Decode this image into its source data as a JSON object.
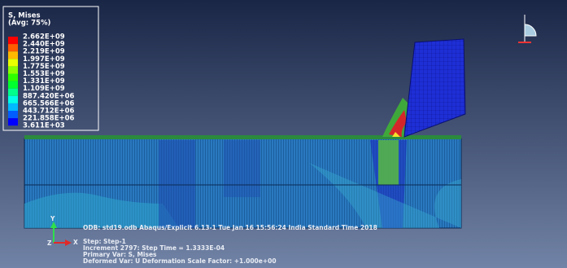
{
  "legend": {
    "title": "S, Mises",
    "subtitle": "(Avg: 75%)",
    "labels": [
      "2.662E+09",
      "2.440E+09",
      "2.219E+09",
      "1.997E+09",
      "1.775E+09",
      "1.553E+09",
      "1.331E+09",
      "1.109E+09",
      "887.420E+06",
      "665.566E+06",
      "443.712E+06",
      "221.858E+06",
      "3.611E+03"
    ],
    "colors": [
      "#ff0000",
      "#ff5d00",
      "#ffb900",
      "#e9ff00",
      "#8bff00",
      "#2eff00",
      "#00ff2e",
      "#00ff8b",
      "#00ffe8",
      "#00b9ff",
      "#005dff",
      "#0000ff"
    ]
  },
  "info": {
    "odb_line": "ODB: std19.odb    Abaqus/Explicit 6.13-1    Tue Jan 16 15:56:24 India Standard Time 2018",
    "step": "Step: Step-1",
    "increment": "Increment    2797: Step Time =    1.3333E-04",
    "primary_var": "Primary Var: S, Mises",
    "deformed_var": "Deformed Var: U   Deformation Scale Factor: +1.000e+00"
  },
  "triad": {
    "y": "Y",
    "x": "X",
    "z": "Z"
  }
}
